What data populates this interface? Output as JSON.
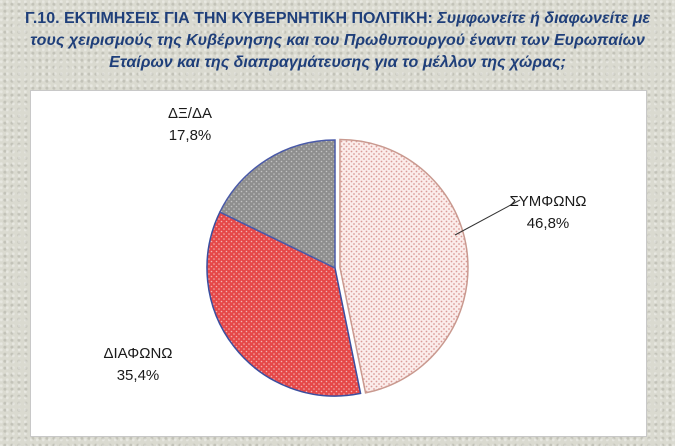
{
  "title": {
    "prefix": "Γ.10. ΕΚΤΙΜΗΣΕΙΣ ΓΙΑ ΤΗΝ ΚΥΒΕΡΝΗΤΙΚΗ ΠΟΛΙΤΙΚΗ:",
    "question_line1": "Συμφωνείτε ή διαφωνείτε με",
    "question_line2": "τους χειρισμούς της Κυβέρνησης και του Πρωθυπουργού έναντι των Ευρωπαίων",
    "question_line3": "Εταίρων και της διαπραγμάτευσης για το μέλλον της χώρας;"
  },
  "colors": {
    "title": "#1f3f7a",
    "agree": "#f4d6d3",
    "disagree": "#e34a4a",
    "dk_na": "#9a9a9a"
  },
  "chart_data": {
    "type": "pie",
    "slices": [
      {
        "label": "ΣΥΜΦΩΝΩ",
        "value": 46.8,
        "display": "46,8%"
      },
      {
        "label": "ΔΙΑΦΩΝΩ",
        "value": 35.4,
        "display": "35,4%"
      },
      {
        "label": "ΔΞ/ΔΑ",
        "value": 17.8,
        "display": "17,8%"
      }
    ]
  }
}
